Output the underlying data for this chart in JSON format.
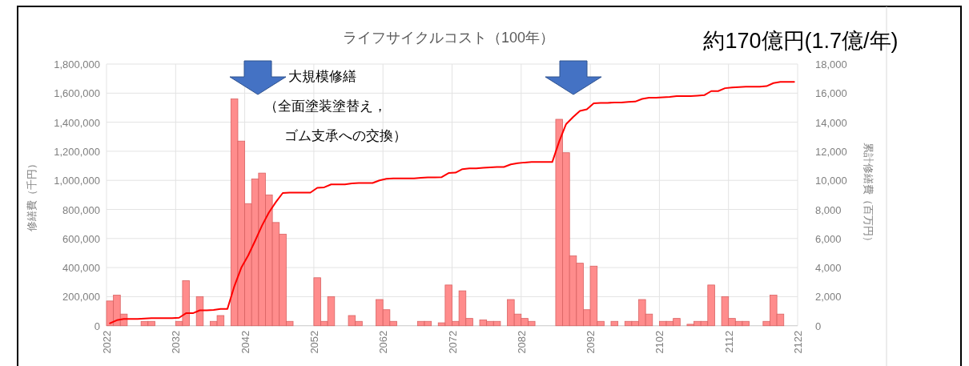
{
  "chart_data": {
    "type": "bar",
    "title": "ライフサイクルコスト（100年）",
    "annotations": [
      "約170億円(1.7億/年)",
      "大規模修繕",
      "（全面塗装塗替え，",
      "ゴム支承への交換）"
    ],
    "ylabel": "修繕費（千円）",
    "y2label": "累計修繕費（百万円）",
    "x": [
      2022.5,
      2023.5,
      2024.5,
      2025.5,
      2026.5,
      2027.5,
      2028.5,
      2029.5,
      2030.5,
      2031.5,
      2032.5,
      2033.5,
      2034.5,
      2035.5,
      2036.5,
      2037.5,
      2038.5,
      2039.5,
      2040.5,
      2041.5,
      2042.5,
      2043.5,
      2044.5,
      2045.5,
      2046.5,
      2047.5,
      2048.5,
      2049.5,
      2050.5,
      2051.5,
      2052.5,
      2053.5,
      2054.5,
      2055.5,
      2056.5,
      2057.5,
      2058.5,
      2059.5,
      2060.5,
      2061.5,
      2062.5,
      2063.5,
      2064.5,
      2065.5,
      2066.5,
      2067.5,
      2068.5,
      2069.5,
      2070.5,
      2071.5,
      2072.5,
      2073.5,
      2074.5,
      2075.5,
      2076.5,
      2077.5,
      2078.5,
      2079.5,
      2080.5,
      2081.5,
      2082.5,
      2083.5,
      2084.5,
      2085.5,
      2086.5,
      2087.5,
      2088.5,
      2089.5,
      2090.5,
      2091.5,
      2092.5,
      2093.5,
      2094.5,
      2095.5,
      2096.5,
      2097.5,
      2098.5,
      2099.5,
      2100.5,
      2101.5,
      2102.5,
      2103.5,
      2104.5,
      2105.5,
      2106.5,
      2107.5,
      2108.5,
      2109.5,
      2110.5,
      2111.5,
      2112.5,
      2113.5,
      2114.5,
      2115.5,
      2116.5,
      2117.5,
      2118.5,
      2119.5,
      2120.5,
      2121.5
    ],
    "series": [
      {
        "color": "#ff8c8c",
        "values": [
          170000,
          210000,
          80000,
          null,
          null,
          30000,
          30000,
          null,
          null,
          null,
          30000,
          310000,
          null,
          200000,
          null,
          30000,
          70000,
          null,
          1560000,
          1270000,
          840000,
          1010000,
          1050000,
          900000,
          710000,
          630000,
          30000,
          null,
          null,
          null,
          330000,
          30000,
          200000,
          null,
          null,
          70000,
          30000,
          null,
          null,
          180000,
          110000,
          30000,
          null,
          null,
          null,
          30000,
          30000,
          null,
          20000,
          280000,
          30000,
          240000,
          50000,
          null,
          40000,
          30000,
          30000,
          null,
          180000,
          80000,
          50000,
          30000,
          null,
          null,
          null,
          1420000,
          1190000,
          480000,
          430000,
          110000,
          410000,
          30000,
          null,
          30000,
          null,
          30000,
          30000,
          180000,
          80000,
          null,
          30000,
          30000,
          50000,
          null,
          10000,
          30000,
          30000,
          280000,
          null,
          200000,
          50000,
          30000,
          30000,
          null,
          null,
          30000,
          210000,
          80000,
          null,
          null
        ]
      },
      {
        "type": "line",
        "axis": "y2",
        "color": "#ff0000",
        "values": [
          170,
          380,
          460,
          460,
          460,
          490,
          520,
          520,
          520,
          520,
          550,
          860,
          860,
          1060,
          1060,
          1090,
          1160,
          1160,
          2720,
          3990,
          4830,
          5840,
          6890,
          7790,
          8500,
          9130,
          9160,
          9160,
          9160,
          9160,
          9490,
          9520,
          9720,
          9720,
          9720,
          9790,
          9820,
          9820,
          9820,
          10000,
          10110,
          10140,
          10140,
          10140,
          10140,
          10170,
          10200,
          10200,
          10220,
          10500,
          10530,
          10770,
          10820,
          10820,
          10860,
          10890,
          10920,
          10920,
          11100,
          11180,
          11230,
          11260,
          11260,
          11260,
          11260,
          12680,
          13870,
          14350,
          14780,
          14890,
          15300,
          15330,
          15330,
          15360,
          15360,
          15390,
          15420,
          15600,
          15680,
          15680,
          15710,
          15740,
          15790,
          15790,
          15800,
          15830,
          15860,
          16140,
          16140,
          16340,
          16390,
          16420,
          16450,
          16450,
          16450,
          16480,
          16690,
          16770,
          16770,
          16770
        ]
      }
    ],
    "xlim": [
      2022,
      2122
    ],
    "xticks": [
      2022,
      2032,
      2042,
      2052,
      2062,
      2072,
      2082,
      2092,
      2102,
      2112,
      2122
    ],
    "ylim": [
      0,
      1800000
    ],
    "yticks": [
      0,
      {
        "value": 200000,
        "label": "200,000"
      },
      {
        "value": 400000,
        "label": "400,000"
      },
      {
        "value": 600000,
        "label": "600,000"
      },
      {
        "value": 800000,
        "label": "800,000"
      },
      {
        "value": 1000000,
        "label": "1,000,000"
      },
      {
        "value": 1200000,
        "label": "1,200,000"
      },
      {
        "value": 1400000,
        "label": "1,400,000"
      },
      {
        "value": 1600000,
        "label": "1,600,000"
      },
      {
        "value": 1800000,
        "label": "1,800,000"
      }
    ],
    "y2lim": [
      0,
      18000
    ],
    "y2ticks": [
      0,
      {
        "value": 2000,
        "label": "2,000"
      },
      {
        "value": 4000,
        "label": "4,000"
      },
      {
        "value": 6000,
        "label": "6,000"
      },
      {
        "value": 8000,
        "label": "8,000"
      },
      {
        "value": 10000,
        "label": "10,000"
      },
      {
        "value": 12000,
        "label": "12,000"
      },
      {
        "value": 14000,
        "label": "14,000"
      },
      {
        "value": 16000,
        "label": "16,000"
      },
      {
        "value": 18000,
        "label": "18,000"
      }
    ],
    "grid": true
  }
}
